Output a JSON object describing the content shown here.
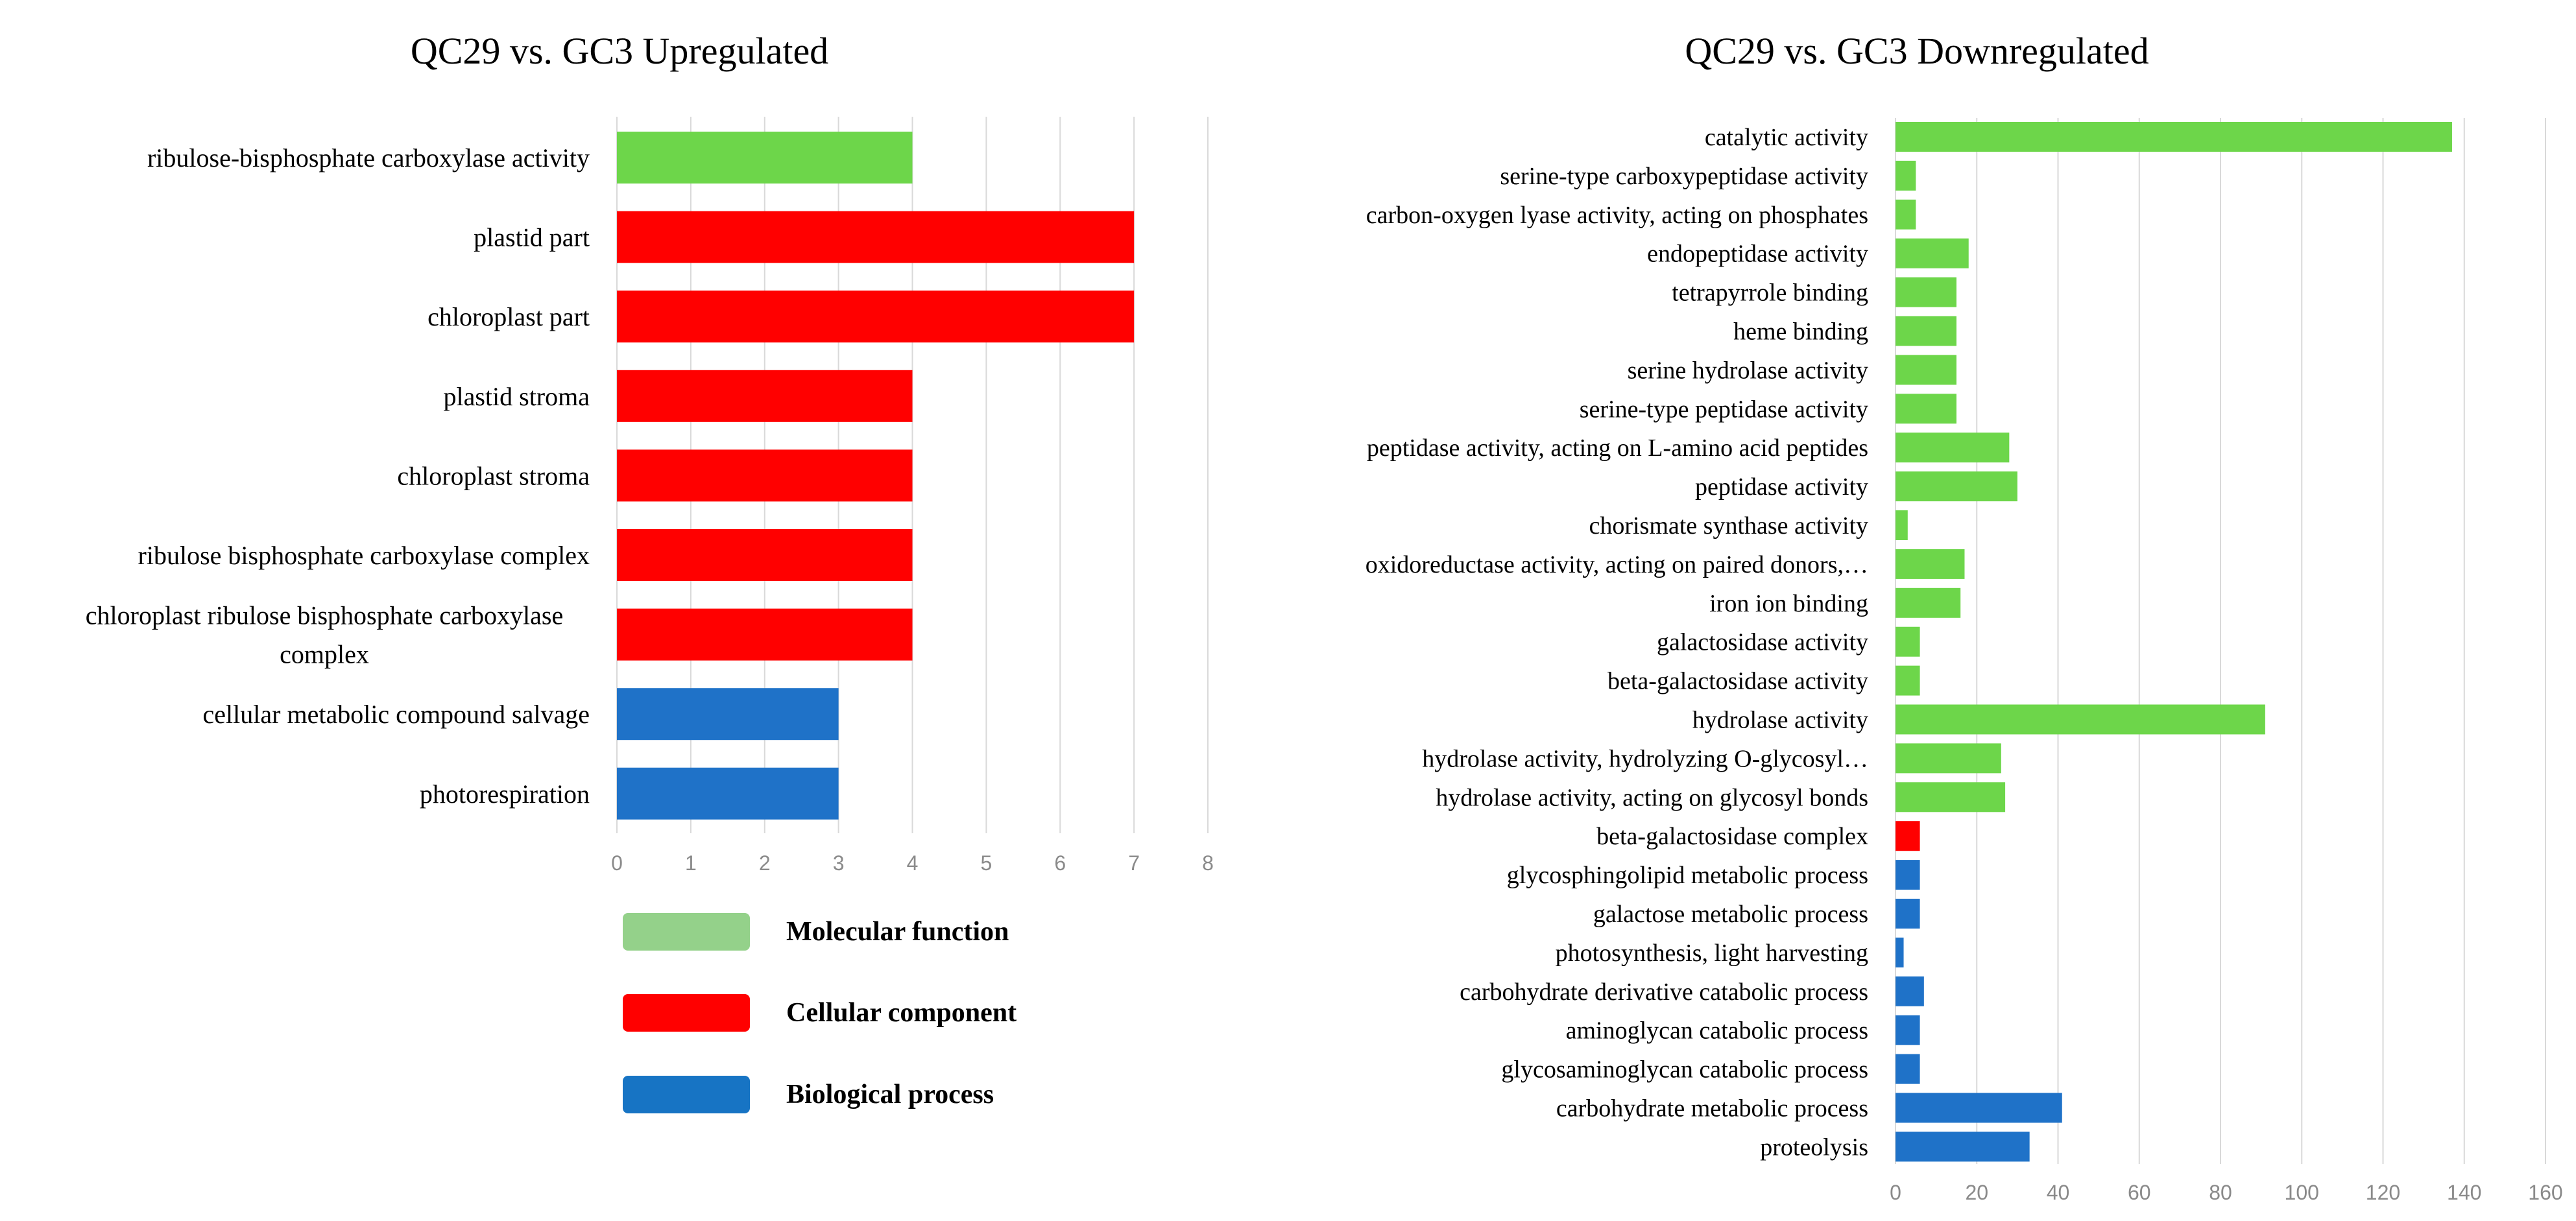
{
  "colors": {
    "molecular_function": "#6dd64a",
    "cellular_component": "#ff0000",
    "biological_process": "#1f72c8",
    "legend_molecular_function": "#94d18a",
    "legend_cellular_component": "#ff0000",
    "legend_biological_process": "#1774c4"
  },
  "legend": [
    {
      "label": "Molecular function",
      "color_key": "legend_molecular_function"
    },
    {
      "label": "Cellular component",
      "color_key": "legend_cellular_component"
    },
    {
      "label": "Biological process",
      "color_key": "legend_biological_process"
    }
  ],
  "chart_data": [
    {
      "type": "bar",
      "orientation": "horizontal",
      "title": "QC29 vs. GC3 Upregulated",
      "xlim": [
        0,
        8
      ],
      "xticks": [
        0,
        1,
        2,
        3,
        4,
        5,
        6,
        7,
        8
      ],
      "grid": true,
      "categories": [
        {
          "label": "ribulose-bisphosphate carboxylase activity",
          "value": 4,
          "group": "molecular_function"
        },
        {
          "label": "plastid part",
          "value": 7,
          "group": "cellular_component"
        },
        {
          "label": "chloroplast part",
          "value": 7,
          "group": "cellular_component"
        },
        {
          "label": "plastid stroma",
          "value": 4,
          "group": "cellular_component"
        },
        {
          "label": "chloroplast stroma",
          "value": 4,
          "group": "cellular_component"
        },
        {
          "label": "ribulose bisphosphate carboxylase complex",
          "value": 4,
          "group": "cellular_component"
        },
        {
          "label": "chloroplast ribulose bisphosphate carboxylase\ncomplex",
          "value": 4,
          "group": "cellular_component"
        },
        {
          "label": "cellular metabolic compound salvage",
          "value": 3,
          "group": "biological_process"
        },
        {
          "label": "photorespiration",
          "value": 3,
          "group": "biological_process"
        }
      ]
    },
    {
      "type": "bar",
      "orientation": "horizontal",
      "title": "QC29 vs. GC3 Downregulated",
      "xlim": [
        0,
        160
      ],
      "xticks": [
        0,
        20,
        40,
        60,
        80,
        100,
        120,
        140,
        160
      ],
      "grid": true,
      "categories": [
        {
          "label": "catalytic activity",
          "value": 137,
          "group": "molecular_function"
        },
        {
          "label": "serine-type carboxypeptidase activity",
          "value": 5,
          "group": "molecular_function"
        },
        {
          "label": "carbon-oxygen lyase activity, acting on phosphates",
          "value": 5,
          "group": "molecular_function"
        },
        {
          "label": "endopeptidase activity",
          "value": 18,
          "group": "molecular_function"
        },
        {
          "label": "tetrapyrrole binding",
          "value": 15,
          "group": "molecular_function"
        },
        {
          "label": "heme binding",
          "value": 15,
          "group": "molecular_function"
        },
        {
          "label": "serine hydrolase activity",
          "value": 15,
          "group": "molecular_function"
        },
        {
          "label": "serine-type peptidase activity",
          "value": 15,
          "group": "molecular_function"
        },
        {
          "label": "peptidase activity, acting on L-amino acid peptides",
          "value": 28,
          "group": "molecular_function"
        },
        {
          "label": "peptidase activity",
          "value": 30,
          "group": "molecular_function"
        },
        {
          "label": "chorismate synthase activity",
          "value": 3,
          "group": "molecular_function"
        },
        {
          "label": "oxidoreductase activity, acting on paired donors,…",
          "value": 17,
          "group": "molecular_function"
        },
        {
          "label": "iron ion binding",
          "value": 16,
          "group": "molecular_function"
        },
        {
          "label": "galactosidase activity",
          "value": 6,
          "group": "molecular_function"
        },
        {
          "label": "beta-galactosidase activity",
          "value": 6,
          "group": "molecular_function"
        },
        {
          "label": "hydrolase activity",
          "value": 91,
          "group": "molecular_function"
        },
        {
          "label": "hydrolase activity, hydrolyzing O-glycosyl…",
          "value": 26,
          "group": "molecular_function"
        },
        {
          "label": "hydrolase activity, acting on glycosyl bonds",
          "value": 27,
          "group": "molecular_function"
        },
        {
          "label": "beta-galactosidase complex",
          "value": 6,
          "group": "cellular_component"
        },
        {
          "label": "glycosphingolipid metabolic process",
          "value": 6,
          "group": "biological_process"
        },
        {
          "label": "galactose metabolic process",
          "value": 6,
          "group": "biological_process"
        },
        {
          "label": "photosynthesis, light harvesting",
          "value": 2,
          "group": "biological_process"
        },
        {
          "label": "carbohydrate derivative catabolic process",
          "value": 7,
          "group": "biological_process"
        },
        {
          "label": "aminoglycan catabolic process",
          "value": 6,
          "group": "biological_process"
        },
        {
          "label": "glycosaminoglycan catabolic process",
          "value": 6,
          "group": "biological_process"
        },
        {
          "label": "carbohydrate metabolic process",
          "value": 41,
          "group": "biological_process"
        },
        {
          "label": "proteolysis",
          "value": 33,
          "group": "biological_process"
        }
      ]
    }
  ]
}
